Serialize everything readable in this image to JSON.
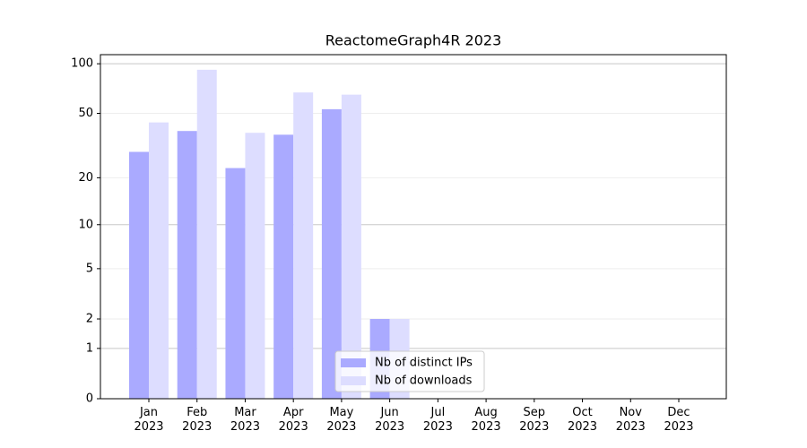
{
  "chart_data": {
    "type": "bar",
    "title": "ReactomeGraph4R 2023",
    "categories": [
      "Jan\n2023",
      "Feb\n2023",
      "Mar\n2023",
      "Apr\n2023",
      "May\n2023",
      "Jun\n2023",
      "Jul\n2023",
      "Aug\n2023",
      "Sep\n2023",
      "Oct\n2023",
      "Nov\n2023",
      "Dec\n2023"
    ],
    "series": [
      {
        "name": "Nb of distinct IPs",
        "color": "#aaaaff",
        "values": [
          29,
          39,
          23,
          37,
          53,
          2,
          0,
          0,
          0,
          0,
          0,
          0
        ]
      },
      {
        "name": "Nb of downloads",
        "color": "#ddddff",
        "values": [
          44,
          92,
          38,
          67,
          65,
          2,
          0,
          0,
          0,
          0,
          0,
          0
        ]
      }
    ],
    "yscale": "log1p",
    "ylim": [
      0,
      113.5
    ],
    "yticks": [
      0,
      1,
      2,
      5,
      10,
      20,
      50,
      100
    ],
    "grid": true,
    "legend": "lower center"
  }
}
